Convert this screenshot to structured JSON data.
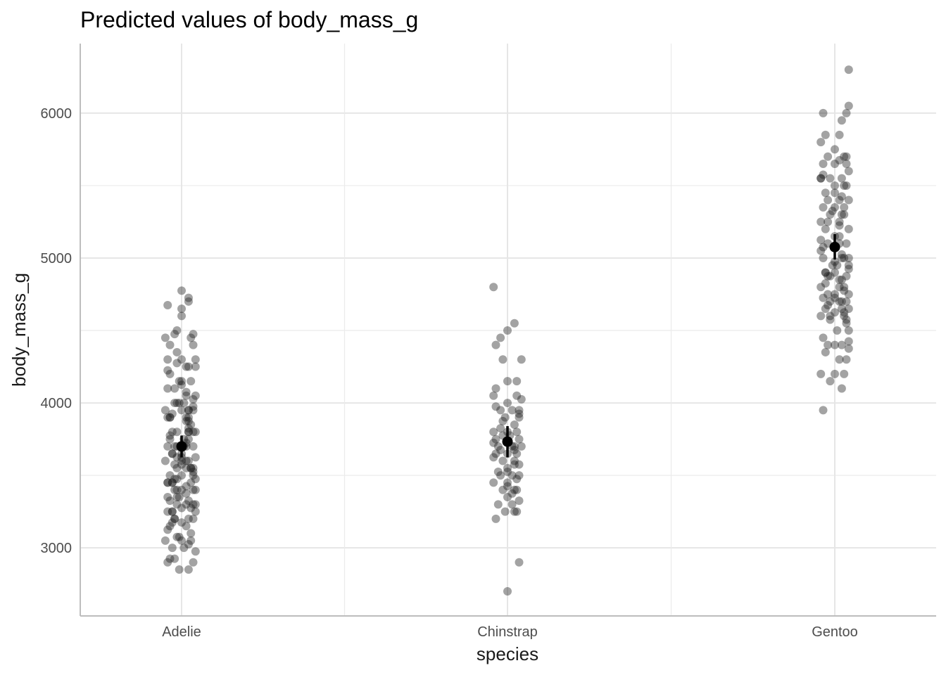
{
  "chart_data": {
    "type": "scatter",
    "title": "Predicted values of body_mass_g",
    "xlabel": "species",
    "ylabel": "body_mass_g",
    "categories": [
      "Adelie",
      "Chinstrap",
      "Gentoo"
    ],
    "ylim": [
      2530,
      6480
    ],
    "yticks": [
      3000,
      4000,
      5000,
      6000
    ],
    "grid": true,
    "legend": "none",
    "colors": {
      "points": "#1a1a1a",
      "estimate": "#000000",
      "grid": "#e6e6e6",
      "axis": "#bdbdbd"
    },
    "predicted": [
      {
        "category": "Adelie",
        "value": 3700,
        "ci": [
          3625,
          3775
        ]
      },
      {
        "category": "Chinstrap",
        "value": 3733,
        "ci": [
          3625,
          3840
        ]
      },
      {
        "category": "Gentoo",
        "value": 5076,
        "ci": [
          4990,
          5165
        ]
      }
    ],
    "observed": [
      {
        "category": "Adelie",
        "jitter": [
          -0.06,
          0.03,
          0.0,
          0.0,
          -0.07,
          0.03,
          -0.02,
          0.0,
          -0.03,
          0.04,
          0.05,
          -0.02,
          -0.05,
          0.06,
          -0.06,
          -0.02,
          0.03,
          0.02,
          -0.05,
          0.04,
          0.0,
          -0.06,
          -0.03,
          0.06,
          0.02,
          -0.03,
          0.01,
          -0.01,
          0.05,
          -0.07,
          0.05,
          0.0,
          -0.05,
          0.03,
          -0.06,
          0.02,
          0.04,
          -0.02,
          0.06,
          -0.04,
          0.03,
          -0.05,
          0.03,
          0.01,
          -0.06,
          -0.02,
          0.05,
          0.02,
          -0.04,
          0.0,
          0.06,
          -0.07,
          0.03,
          -0.03,
          0.05,
          0.02,
          -0.02,
          0.0,
          -0.05,
          0.06,
          -0.02,
          0.04,
          -0.06,
          -0.04,
          0.02,
          0.05,
          0.0,
          -0.03,
          0.06,
          -0.01,
          -0.06,
          0.03,
          -0.05,
          0.05,
          0.02,
          -0.02,
          0.0,
          -0.06,
          0.06,
          -0.04,
          0.03,
          -0.03,
          0.05,
          0.0,
          -0.05,
          0.02,
          0.04,
          -0.02,
          -0.07,
          0.0,
          0.04,
          -0.04,
          0.01,
          0.06,
          -0.03,
          0.05,
          -0.06,
          -0.01,
          0.03,
          -0.03,
          0.01,
          0.05,
          -0.05,
          0.03,
          -0.02,
          0.06,
          0.0,
          -0.06,
          0.04,
          -0.04,
          0.0,
          0.05,
          -0.02,
          -0.03,
          0.03,
          0.02,
          -0.02,
          -0.04,
          0.04,
          0.06,
          -0.04,
          0.02,
          -0.05,
          0.03,
          0.02,
          -0.01,
          0.0,
          -0.03,
          0.05,
          -0.02,
          0.02,
          0.03,
          -0.04,
          0.05,
          0.0,
          -0.06,
          0.02,
          0.04,
          -0.04,
          -0.01,
          0.0,
          0.03,
          0.05,
          -0.05,
          0.03
        ],
        "values": [
          4675,
          4725,
          4650,
          4775,
          4450,
          4700,
          4500,
          4600,
          4475,
          4450,
          4400,
          4350,
          4400,
          4300,
          4300,
          4275,
          4250,
          4250,
          4200,
          4150,
          4150,
          4100,
          4100,
          4050,
          4075,
          4000,
          4000,
          4000,
          3975,
          3950,
          3950,
          3950,
          3900,
          3900,
          3900,
          3875,
          3850,
          3800,
          3800,
          3800,
          3800,
          3775,
          3750,
          3750,
          3700,
          3700,
          3700,
          3700,
          3650,
          3650,
          3625,
          3600,
          3600,
          3575,
          3550,
          3550,
          3550,
          3500,
          3500,
          3475,
          3475,
          3450,
          3450,
          3450,
          3425,
          3400,
          3400,
          3400,
          3400,
          3350,
          3350,
          3325,
          3325,
          3300,
          3300,
          3300,
          3275,
          3250,
          3250,
          3250,
          3200,
          3200,
          3200,
          3175,
          3150,
          3150,
          3100,
          3075,
          3050,
          3050,
          3050,
          3000,
          3000,
          2975,
          2925,
          2900,
          2900,
          2850,
          2850,
          3200,
          3700,
          3800,
          3900,
          3950,
          4000,
          4250,
          4300,
          3450,
          3550,
          3650,
          3600,
          3500,
          3350,
          3700,
          3800,
          3900,
          3400,
          3450,
          3550,
          3300,
          3250,
          3600,
          3750,
          3950,
          4050,
          4150,
          3575,
          3475,
          3525,
          3625,
          3725,
          3825,
          3925,
          4025,
          4125,
          4225,
          3375,
          3275,
          3175,
          3075,
          3625,
          3875,
          4475,
          2925,
          3025,
          3125
        ]
      },
      {
        "category": "Chinstrap",
        "jitter": [
          -0.06,
          0.03,
          0.0,
          -0.03,
          -0.05,
          0.06,
          -0.02,
          0.04,
          0.0,
          -0.05,
          0.04,
          -0.06,
          0.0,
          0.05,
          -0.03,
          0.02,
          0.05,
          -0.01,
          0.03,
          -0.06,
          0.04,
          0.0,
          -0.02,
          0.05,
          -0.05,
          0.03,
          -0.04,
          0.02,
          0.06,
          -0.03,
          0.0,
          0.04,
          -0.05,
          0.03,
          -0.02,
          0.05,
          0.0,
          -0.04,
          0.02,
          0.05,
          -0.03,
          0.0,
          -0.06,
          0.04,
          0.03,
          -0.02,
          0.0,
          0.05,
          -0.04,
          0.02,
          0.04,
          -0.01,
          0.03,
          -0.05,
          0.05,
          0.0,
          -0.06,
          0.03,
          0.01,
          -0.03,
          0.04,
          0.0,
          -0.02,
          0.05,
          -0.06,
          0.03,
          0.0,
          0.02,
          -0.05,
          0.06
        ],
        "values": [
          4800,
          4550,
          4500,
          4450,
          4400,
          4300,
          4300,
          4150,
          4150,
          4100,
          4050,
          4050,
          4000,
          3950,
          3950,
          3950,
          3900,
          3900,
          3850,
          3800,
          3800,
          3800,
          3775,
          3750,
          3750,
          3700,
          3700,
          3700,
          3700,
          3675,
          3650,
          3650,
          3650,
          3600,
          3600,
          3575,
          3550,
          3525,
          3500,
          3500,
          3500,
          3450,
          3450,
          3400,
          3400,
          3400,
          3350,
          3325,
          3300,
          3300,
          3250,
          3250,
          3250,
          3200,
          2900,
          2700,
          3725,
          3675,
          3775,
          3825,
          3475,
          3525,
          3875,
          3925,
          3625,
          3575,
          3425,
          3375,
          3975,
          4025
        ]
      },
      {
        "category": "Gentoo",
        "jitter": [
          0.06,
          0.06,
          0.05,
          -0.05,
          0.03,
          -0.04,
          0.02,
          -0.06,
          0.0,
          -0.03,
          0.05,
          0.04,
          0.0,
          -0.05,
          0.06,
          -0.02,
          0.03,
          -0.06,
          0.0,
          0.05,
          0.04,
          -0.04,
          0.02,
          -0.03,
          0.06,
          -0.05,
          0.0,
          -0.02,
          0.04,
          0.03,
          -0.06,
          0.02,
          -0.04,
          0.06,
          0.0,
          -0.03,
          0.05,
          0.02,
          -0.06,
          0.04,
          0.03,
          -0.05,
          0.01,
          -0.01,
          0.06,
          0.0,
          -0.04,
          0.05,
          -0.02,
          0.03,
          0.02,
          -0.06,
          0.04,
          -0.03,
          0.06,
          0.0,
          -0.05,
          0.05,
          -0.02,
          0.02,
          0.03,
          -0.04,
          0.06,
          0.0,
          -0.06,
          0.04,
          -0.02,
          0.05,
          0.01,
          -0.05,
          0.03,
          -0.03,
          0.0,
          0.06,
          -0.04,
          0.02,
          0.05,
          -0.06,
          0.04,
          0.0,
          -0.02,
          0.03,
          -0.05,
          0.06,
          0.02,
          -0.03,
          0.04,
          0.0,
          -0.06,
          0.05,
          -0.04,
          0.02,
          0.03,
          -0.02,
          0.06,
          -0.05,
          0.0,
          0.04,
          -0.03,
          0.05,
          -0.06,
          0.02,
          -0.01,
          0.03,
          0.06,
          -0.04,
          0.0,
          0.04,
          -0.05,
          0.02,
          0.06,
          -0.03,
          0.03,
          0.0,
          -0.06,
          0.05,
          -0.02,
          0.01
        ],
        "values": [
          6300,
          6050,
          6000,
          6000,
          5950,
          5850,
          5850,
          5800,
          5750,
          5700,
          5700,
          5700,
          5650,
          5650,
          5600,
          5550,
          5550,
          5550,
          5500,
          5500,
          5500,
          5450,
          5400,
          5400,
          5400,
          5350,
          5350,
          5300,
          5300,
          5300,
          5250,
          5250,
          5200,
          5200,
          5150,
          5100,
          5100,
          5100,
          5050,
          5000,
          5000,
          5000,
          4950,
          4950,
          4950,
          4900,
          4900,
          4875,
          4875,
          4850,
          4850,
          4800,
          4800,
          4750,
          4750,
          4750,
          4725,
          4700,
          4700,
          4700,
          4650,
          4650,
          4650,
          4625,
          4600,
          4600,
          4575,
          4550,
          4500,
          4450,
          4400,
          4400,
          4400,
          4375,
          4350,
          4300,
          4300,
          4200,
          4200,
          4200,
          4150,
          4100,
          3950,
          5000,
          5150,
          5250,
          5350,
          5450,
          5550,
          5650,
          4900,
          4800,
          4700,
          4600,
          4500,
          5075,
          4975,
          4775,
          4675,
          4575,
          5125,
          5225,
          5325,
          5425,
          4925,
          4825,
          4725,
          4625,
          5575,
          5675,
          4425,
          4875,
          5025
        ]
      }
    ]
  }
}
